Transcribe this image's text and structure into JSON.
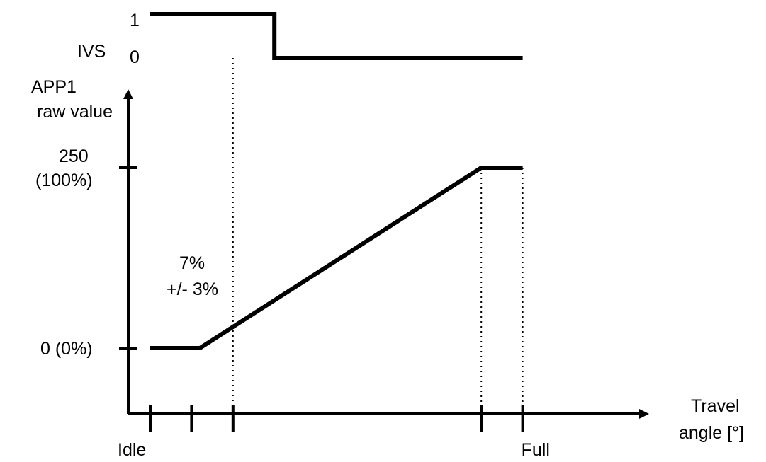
{
  "chart_data": {
    "type": "line",
    "ivs": {
      "label": "IVS",
      "tick_labels": [
        "1",
        "0"
      ],
      "x": [
        0,
        3,
        3,
        9
      ],
      "y": [
        1,
        1,
        0,
        0
      ]
    },
    "app1": {
      "ylabel_line1": "APP1",
      "ylabel_line2": "raw value",
      "ytick_labels": [
        {
          "line1": "250",
          "line2": "(100%)",
          "value": 250
        },
        {
          "line1": "0 (0%)",
          "line2": "",
          "value": 0
        }
      ],
      "x": [
        0,
        1.2,
        8,
        9
      ],
      "y": [
        0,
        0,
        250,
        250
      ],
      "ylim": [
        -90,
        450
      ]
    },
    "xaxis": {
      "label_line1": "Travel",
      "label_line2": "angle [°]",
      "ticks": [
        0,
        1,
        2,
        8,
        9
      ],
      "tick_labels": [
        {
          "x": 0,
          "text": "Idle"
        },
        {
          "x": 9,
          "text": "Full"
        }
      ],
      "dotted_guides": [
        2,
        8,
        9
      ],
      "xlim": [
        -0.5,
        12
      ]
    },
    "annotation": {
      "line1": "7%",
      "line2": "+/- 3%"
    },
    "colors": {
      "line": "#000000",
      "axis": "#000000"
    }
  }
}
